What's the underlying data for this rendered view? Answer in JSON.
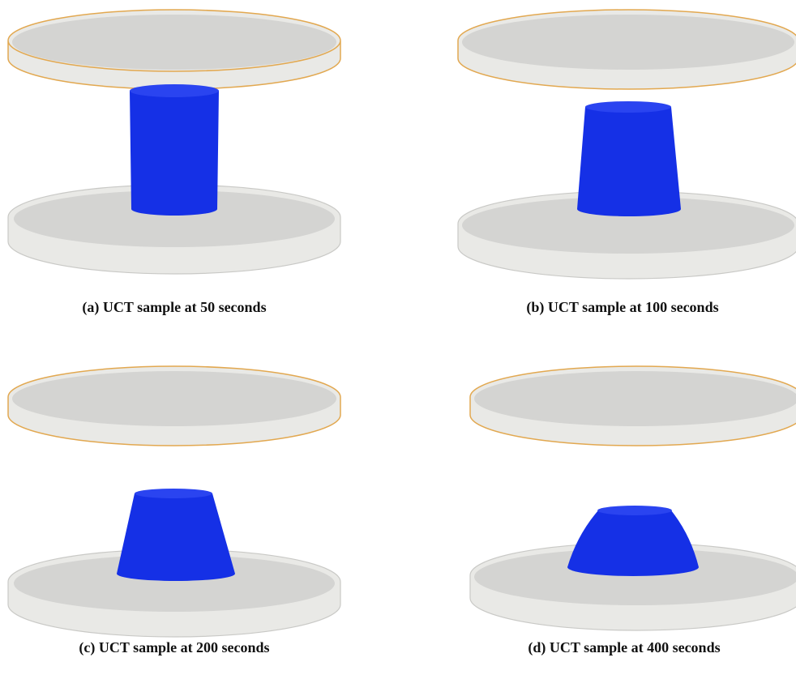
{
  "figure": {
    "panels": [
      {
        "caption": "(a) UCT sample at 50 seconds"
      },
      {
        "caption": "(b) UCT sample at 100 seconds"
      },
      {
        "caption": "(c) UCT sample at 200 seconds"
      },
      {
        "caption": "(d) UCT sample at 400 seconds"
      }
    ]
  }
}
